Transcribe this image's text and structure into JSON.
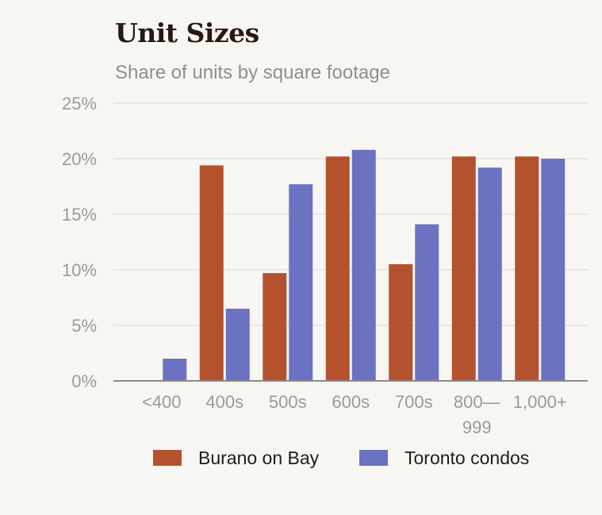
{
  "chart_data": {
    "type": "bar",
    "title": "Unit Sizes",
    "subtitle": "Share of units by square footage",
    "categories": [
      [
        "<400"
      ],
      [
        "400s"
      ],
      [
        "500s"
      ],
      [
        "600s"
      ],
      [
        "700s"
      ],
      [
        "800—",
        "999"
      ],
      [
        "1,000+"
      ]
    ],
    "series": [
      {
        "name": "Burano on Bay",
        "color": "#b5522e",
        "values": [
          0,
          19.4,
          9.7,
          20.2,
          10.5,
          20.2,
          20.2
        ]
      },
      {
        "name": "Toronto condos",
        "color": "#6b72c2",
        "values": [
          2.0,
          6.5,
          17.7,
          20.8,
          14.1,
          19.2,
          20.0
        ]
      }
    ],
    "ylim": [
      0,
      25
    ],
    "yticks": [
      0,
      5,
      10,
      15,
      20,
      25
    ],
    "ytick_labels": [
      "0%",
      "5%",
      "10%",
      "15%",
      "20%",
      "25%"
    ],
    "grid": true,
    "legend_position": "bottom",
    "grid_color": "#e5e2dc",
    "axis_color": "#8a8a8a"
  }
}
